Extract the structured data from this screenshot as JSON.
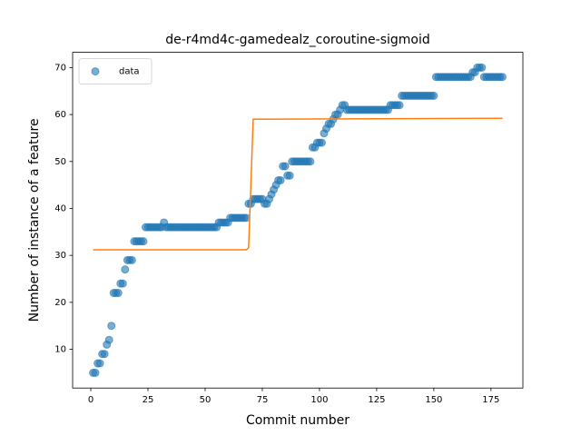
{
  "chart_data": {
    "type": "scatter",
    "title": "de-r4md4c-gamedealz_coroutine-sigmoid",
    "x_label": "Commit number",
    "y_label": "Number of instance of a feature",
    "xlim": [
      -7.95,
      188.95
    ],
    "ylim": [
      1.75,
      73.25
    ],
    "xticks": [
      0,
      25,
      50,
      75,
      100,
      125,
      150,
      175
    ],
    "yticks": [
      10,
      20,
      30,
      40,
      50,
      60,
      70
    ],
    "grid": false,
    "legend": "upper left",
    "series": [
      {
        "name": "data",
        "type": "scatter",
        "color": "#1f77b4",
        "alpha": 0.6,
        "x": [
          1,
          2,
          3,
          4,
          5,
          6,
          7,
          8,
          9,
          10,
          11,
          12,
          13,
          14,
          15,
          16,
          17,
          18,
          19,
          20,
          21,
          22,
          23,
          24,
          25,
          26,
          27,
          28,
          29,
          30,
          31,
          32,
          33,
          34,
          35,
          36,
          37,
          38,
          39,
          40,
          41,
          42,
          43,
          44,
          45,
          46,
          47,
          48,
          49,
          50,
          51,
          52,
          53,
          54,
          55,
          56,
          57,
          58,
          59,
          60,
          61,
          62,
          63,
          64,
          65,
          66,
          67,
          68,
          69,
          70,
          71,
          72,
          73,
          74,
          75,
          76,
          77,
          78,
          79,
          80,
          81,
          82,
          83,
          84,
          85,
          86,
          87,
          88,
          89,
          90,
          91,
          92,
          93,
          94,
          95,
          96,
          97,
          98,
          99,
          100,
          101,
          102,
          103,
          104,
          105,
          106,
          107,
          108,
          109,
          110,
          111,
          112,
          113,
          114,
          115,
          116,
          117,
          118,
          119,
          120,
          121,
          122,
          123,
          124,
          125,
          126,
          127,
          128,
          129,
          130,
          131,
          132,
          133,
          134,
          135,
          136,
          137,
          138,
          139,
          140,
          141,
          142,
          143,
          144,
          145,
          146,
          147,
          148,
          149,
          150,
          151,
          152,
          153,
          154,
          155,
          156,
          157,
          158,
          159,
          160,
          161,
          162,
          163,
          164,
          165,
          166,
          167,
          168,
          169,
          170,
          171,
          172,
          173,
          174,
          175,
          176,
          177,
          178,
          179,
          180
        ],
        "values": [
          5,
          5,
          7,
          7,
          9,
          9,
          11,
          12,
          15,
          22,
          22,
          22,
          24,
          24,
          27,
          29,
          29,
          29,
          33,
          33,
          33,
          33,
          33,
          36,
          36,
          36,
          36,
          36,
          36,
          36,
          36,
          37,
          36,
          36,
          36,
          36,
          36,
          36,
          36,
          36,
          36,
          36,
          36,
          36,
          36,
          36,
          36,
          36,
          36,
          36,
          36,
          36,
          36,
          36,
          36,
          37,
          37,
          37,
          37,
          37,
          38,
          38,
          38,
          38,
          38,
          38,
          38,
          38,
          41,
          41,
          42,
          42,
          42,
          42,
          42,
          41,
          41,
          42,
          43,
          44,
          45,
          46,
          46,
          49,
          49,
          47,
          47,
          50,
          50,
          50,
          50,
          50,
          50,
          50,
          50,
          50,
          53,
          53,
          54,
          54,
          54,
          56,
          57,
          58,
          58,
          59,
          60,
          60,
          61,
          62,
          62,
          61,
          61,
          61,
          61,
          61,
          61,
          61,
          61,
          61,
          61,
          61,
          61,
          61,
          61,
          61,
          61,
          61,
          61,
          61,
          62,
          62,
          62,
          62,
          62,
          64,
          64,
          64,
          64,
          64,
          64,
          64,
          64,
          64,
          64,
          64,
          64,
          64,
          64,
          64,
          68,
          68,
          68,
          68,
          68,
          68,
          68,
          68,
          68,
          68,
          68,
          68,
          68,
          68,
          68,
          68,
          69,
          69,
          70,
          70,
          70,
          68,
          68,
          68,
          68,
          68,
          68,
          68,
          68,
          68
        ]
      },
      {
        "type": "line",
        "color": "#ff7f0e",
        "x": [
          1,
          68,
          69,
          70,
          71,
          180
        ],
        "values": [
          31.2,
          31.2,
          31.6,
          45,
          59,
          59.2
        ]
      }
    ]
  }
}
